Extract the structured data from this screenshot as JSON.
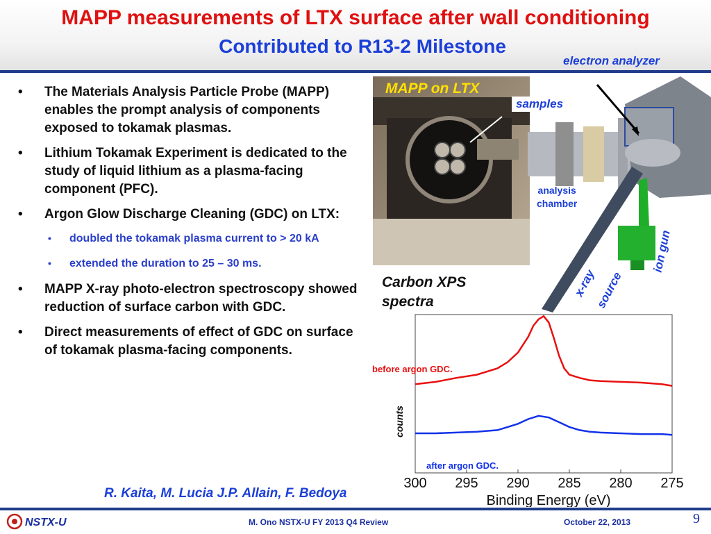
{
  "header": {
    "title": "MAPP measurements of LTX surface after wall conditioning",
    "subtitle": "Contributed to R13-2 Milestone"
  },
  "bullets": [
    "The Materials Analysis Particle Probe (MAPP) enables the prompt analysis of components exposed to tokamak plasmas.",
    "Lithium Tokamak Experiment is dedicated to the study of liquid lithium as a plasma-facing component (PFC).",
    "Argon Glow Discharge Cleaning (GDC) on LTX:",
    "MAPP X-ray photo-electron spectroscopy showed reduction of surface carbon with GDC.",
    "Direct measurements of effect of GDC on surface of tokamak plasma-facing components."
  ],
  "sub_bullets": [
    "doubled the tokamak plasma current to > 20 kA",
    "extended the duration to 25 – 30 ms."
  ],
  "bullet_symbol": "•",
  "authors": "R. Kaita, M. Lucia J.P. Allain, F. Bedoya",
  "labels": {
    "electron_analyzer": "electron analyzer",
    "mapp_on_ltx": "MAPP on LTX",
    "samples": "samples",
    "analysis_chamber_1": "analysis",
    "analysis_chamber_2": "chamber",
    "ion_gun": "ion gun",
    "xray": "x-ray",
    "source": "source",
    "carbon_xps_1": "Carbon XPS",
    "carbon_xps_2": "spectra"
  },
  "chart_data": {
    "type": "line",
    "xlabel": "Binding Energy (eV)",
    "ylabel": "counts",
    "xlim": [
      300,
      275
    ],
    "x_reversed": true,
    "xticks": [
      "300",
      "295",
      "290",
      "285",
      "280",
      "275"
    ],
    "series": [
      {
        "name": "before argon GDC.",
        "color": "#e81010",
        "x": [
          300,
          298,
          296,
          294,
          292,
          291,
          290,
          289,
          288.5,
          288,
          287.5,
          287,
          286.5,
          286,
          285.5,
          285,
          284,
          283,
          282,
          280,
          278,
          276,
          275
        ],
        "y": [
          0.56,
          0.575,
          0.6,
          0.62,
          0.66,
          0.7,
          0.76,
          0.86,
          0.93,
          0.97,
          0.99,
          0.95,
          0.85,
          0.74,
          0.66,
          0.62,
          0.6,
          0.585,
          0.58,
          0.575,
          0.57,
          0.56,
          0.55
        ]
      },
      {
        "name": "after argon GDC.",
        "color": "#1232e8",
        "x": [
          300,
          298,
          296,
          294,
          292,
          291,
          290,
          289,
          288,
          287,
          286,
          285,
          284,
          283,
          282,
          280,
          278,
          276,
          275
        ],
        "y": [
          0.25,
          0.25,
          0.255,
          0.26,
          0.27,
          0.29,
          0.31,
          0.34,
          0.36,
          0.35,
          0.32,
          0.29,
          0.27,
          0.26,
          0.255,
          0.25,
          0.245,
          0.245,
          0.24
        ]
      }
    ],
    "annotations": [
      "before argon GDC.",
      "after argon GDC."
    ]
  },
  "footer": {
    "logo": "NSTX-U",
    "center": "M. Ono NSTX-U FY 2013 Q4 Review",
    "date": "October 22, 2013",
    "page": "9"
  },
  "colors": {
    "title": "#e01010",
    "subtitle": "#1c3fd8",
    "header_rule": "#1f3b8a",
    "label_blue": "#1c3fd8"
  }
}
